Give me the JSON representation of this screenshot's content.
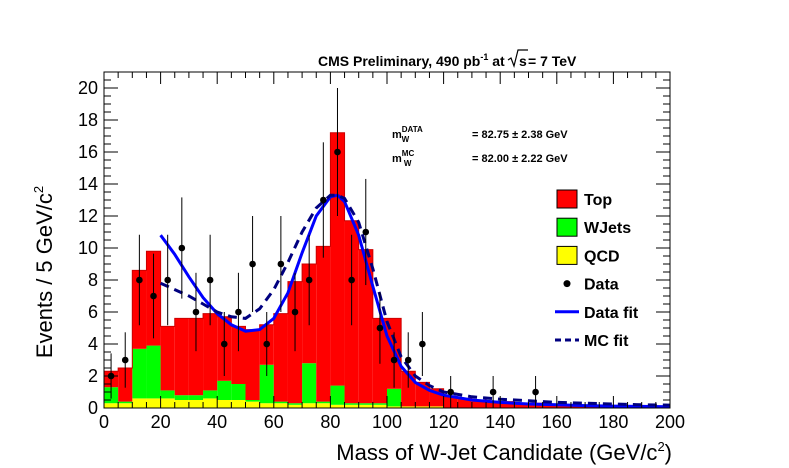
{
  "chart_data": {
    "type": "bar",
    "stacked": true,
    "title": "CMS Preliminary, 490 pb",
    "title_sup": "-1",
    "title_mid": " at",
    "title_sqrt_var": "s",
    "title_tail": " = 7 TeV",
    "xlabel": "Mass of W-Jet Candidate (GeV/c",
    "xlabel_sup": "2",
    "xlabel_close": ")",
    "ylabel": "Events / 5 GeV/c",
    "ylabel_sup": "2",
    "xlim": [
      0,
      200
    ],
    "ylim": [
      0,
      21
    ],
    "x_ticks": [
      0,
      20,
      40,
      60,
      80,
      100,
      120,
      140,
      160,
      180,
      200
    ],
    "y_ticks": [
      0,
      2,
      4,
      6,
      8,
      10,
      12,
      14,
      16,
      18,
      20
    ],
    "bin_edges": [
      0,
      5,
      10,
      15,
      20,
      25,
      30,
      35,
      40,
      45,
      50,
      55,
      60,
      65,
      70,
      75,
      80,
      85,
      90,
      95,
      100,
      105,
      110,
      115,
      120,
      125,
      130,
      135,
      140,
      145,
      150,
      155,
      160,
      165,
      170,
      175,
      180,
      185,
      190,
      195,
      200
    ],
    "series": [
      {
        "name": "QCD",
        "color": "#ffff00",
        "values": [
          0.3,
          0.3,
          0.6,
          0.6,
          0.6,
          0.5,
          0.5,
          0.6,
          0.5,
          0.5,
          0.4,
          0.3,
          0.3,
          0.2,
          0.3,
          0.3,
          0.2,
          0.2,
          0.2,
          0.2,
          0.1,
          0.1,
          0.1,
          0.1,
          0,
          0,
          0,
          0,
          0,
          0,
          0,
          0,
          0,
          0,
          0,
          0,
          0,
          0,
          0,
          0
        ]
      },
      {
        "name": "WJets",
        "color": "#00ff00",
        "values": [
          1.0,
          0.1,
          3.1,
          3.3,
          0.5,
          0.3,
          0.3,
          0.5,
          1.2,
          1.0,
          0.1,
          2.4,
          0.1,
          0.1,
          2.5,
          0.1,
          1.2,
          0.1,
          0.1,
          0.1,
          1.1,
          0,
          0,
          0,
          0,
          0,
          0,
          0,
          0,
          0,
          0,
          0,
          0,
          0,
          0,
          0,
          0,
          0,
          0,
          0
        ]
      },
      {
        "name": "Top",
        "color": "#ff0000",
        "values": [
          1.0,
          2.1,
          4.9,
          5.9,
          4.0,
          4.8,
          4.8,
          4.8,
          4.0,
          3.6,
          4.4,
          2.5,
          5.5,
          7.6,
          6.2,
          9.7,
          15.8,
          11.4,
          9.6,
          5.3,
          4.4,
          2.2,
          1.5,
          1.1,
          0.7,
          0.6,
          0.5,
          0.4,
          0.4,
          0.3,
          0.3,
          0.2,
          0.2,
          0.1,
          0.1,
          0.1,
          0.1,
          0.1,
          0.1,
          0.1
        ]
      }
    ],
    "data_points": {
      "name": "Data",
      "x": [
        2.5,
        7.5,
        12.5,
        17.5,
        22.5,
        27.5,
        32.5,
        37.5,
        42.5,
        47.5,
        52.5,
        57.5,
        62.5,
        67.5,
        72.5,
        77.5,
        82.5,
        87.5,
        92.5,
        97.5,
        102.5,
        107.5,
        112.5,
        122.5,
        137.5,
        152.5
      ],
      "y": [
        2,
        3,
        8,
        7,
        8,
        10,
        6,
        8,
        4,
        6,
        9,
        4,
        9,
        6,
        8,
        13,
        16,
        8,
        11,
        5,
        3,
        3,
        4,
        1,
        1,
        1
      ]
    },
    "fits": [
      {
        "name": "Data fit",
        "style": "solid",
        "color": "#0000ff",
        "x": [
          20,
          25,
          30,
          35,
          40,
          45,
          50,
          55,
          60,
          65,
          70,
          75,
          80,
          82.5,
          85,
          90,
          95,
          100,
          105,
          110,
          115,
          120,
          130,
          140,
          150,
          160,
          170,
          180,
          190,
          200
        ],
        "y": [
          10.8,
          9.6,
          8.2,
          6.9,
          5.9,
          5.2,
          4.8,
          4.9,
          5.6,
          7.2,
          9.7,
          12.0,
          13.2,
          13.3,
          12.9,
          10.8,
          7.6,
          4.5,
          2.6,
          1.6,
          1.1,
          0.8,
          0.5,
          0.35,
          0.25,
          0.2,
          0.15,
          0.12,
          0.1,
          0.08
        ]
      },
      {
        "name": "MC fit",
        "style": "dashed",
        "color": "#000080",
        "x": [
          20,
          25,
          30,
          35,
          40,
          45,
          50,
          55,
          60,
          65,
          70,
          75,
          80,
          82.5,
          85,
          90,
          95,
          100,
          105,
          110,
          115,
          120,
          130,
          140,
          150,
          160,
          170,
          180,
          190,
          200
        ],
        "y": [
          7.8,
          7.4,
          7.0,
          6.5,
          6.0,
          5.7,
          5.6,
          6.2,
          7.4,
          9.1,
          11.0,
          12.5,
          13.3,
          13.3,
          13.1,
          11.6,
          8.7,
          5.4,
          3.2,
          2.0,
          1.4,
          1.0,
          0.7,
          0.55,
          0.45,
          0.35,
          0.3,
          0.25,
          0.2,
          0.18
        ]
      }
    ],
    "fit_results": [
      {
        "label": "m",
        "sub": "W",
        "sup": "DATA",
        "value": "= 82.75 ±  2.38 GeV"
      },
      {
        "label": "m",
        "sub": "W",
        "sup": "MC",
        "value": "= 82.00 ±  2.22 GeV"
      }
    ],
    "legend": {
      "position": "right",
      "entries": [
        {
          "label": "Top",
          "kind": "box",
          "color": "#ff0000"
        },
        {
          "label": "WJets",
          "kind": "box",
          "color": "#00ff00"
        },
        {
          "label": "QCD",
          "kind": "box",
          "color": "#ffff00"
        },
        {
          "label": "Data",
          "kind": "marker",
          "color": "#000000"
        },
        {
          "label": "Data fit",
          "kind": "solid",
          "color": "#0000ff"
        },
        {
          "label": "MC fit",
          "kind": "dashed",
          "color": "#000080"
        }
      ]
    },
    "grid": false
  }
}
